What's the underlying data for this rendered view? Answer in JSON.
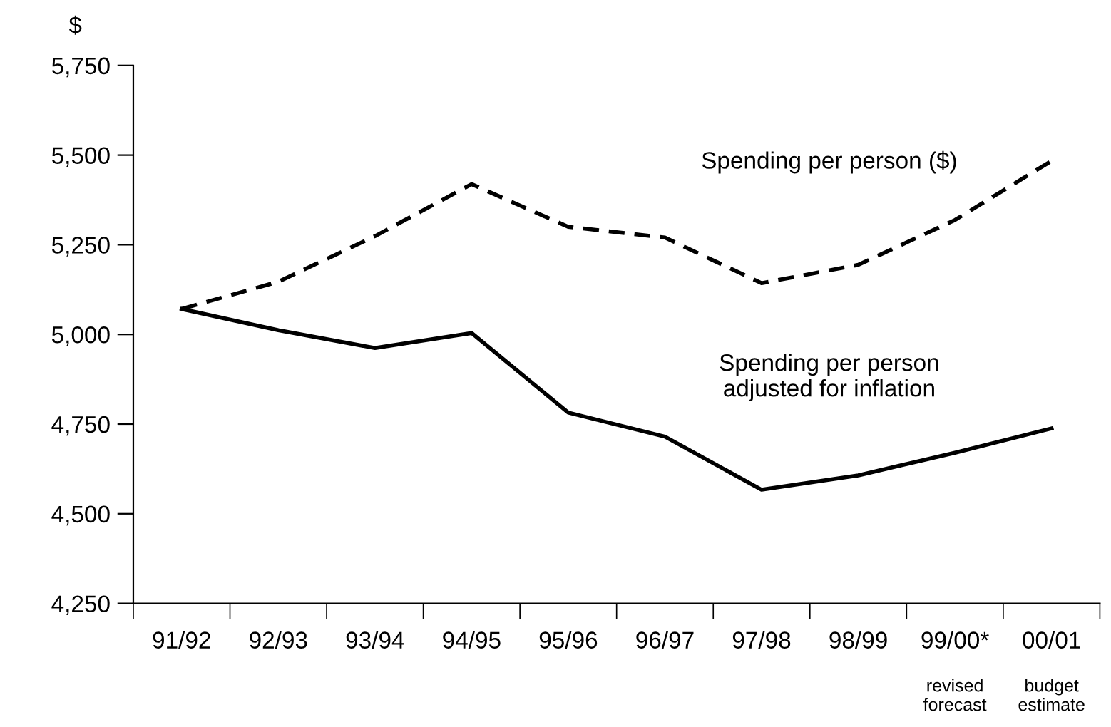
{
  "chart_data": {
    "type": "line",
    "ylabel": "$",
    "categories": [
      "91/92",
      "92/93",
      "93/94",
      "94/95",
      "95/96",
      "96/97",
      "97/98",
      "98/99",
      "99/00*",
      "00/01"
    ],
    "series": [
      {
        "name": "Spending per person ($)",
        "color": "#000000",
        "line_style": "dashed",
        "values": [
          5071,
          5147,
          5274,
          5419,
          5300,
          5270,
          5143,
          5194,
          5319,
          5484
        ]
      },
      {
        "name": "Spending per person\nadjusted for inflation",
        "color": "#000000",
        "line_style": "solid",
        "values": [
          5071,
          5012,
          4962,
          5004,
          4782,
          4715,
          4567,
          4607,
          4670,
          4738
        ]
      }
    ],
    "ylim": [
      4250,
      5750
    ],
    "yticks": [
      {
        "value": 4250,
        "label": "4,250"
      },
      {
        "value": 4500,
        "label": "4,500"
      },
      {
        "value": 4750,
        "label": "4,750"
      },
      {
        "value": 5000,
        "label": "5,000"
      },
      {
        "value": 5250,
        "label": "5,250"
      },
      {
        "value": 5500,
        "label": "5,500"
      },
      {
        "value": 5750,
        "label": "5,750"
      }
    ],
    "annotations": [
      "revised\nforecast",
      "budget\nestimate"
    ],
    "grid": false,
    "legend": false,
    "marker": "none"
  }
}
